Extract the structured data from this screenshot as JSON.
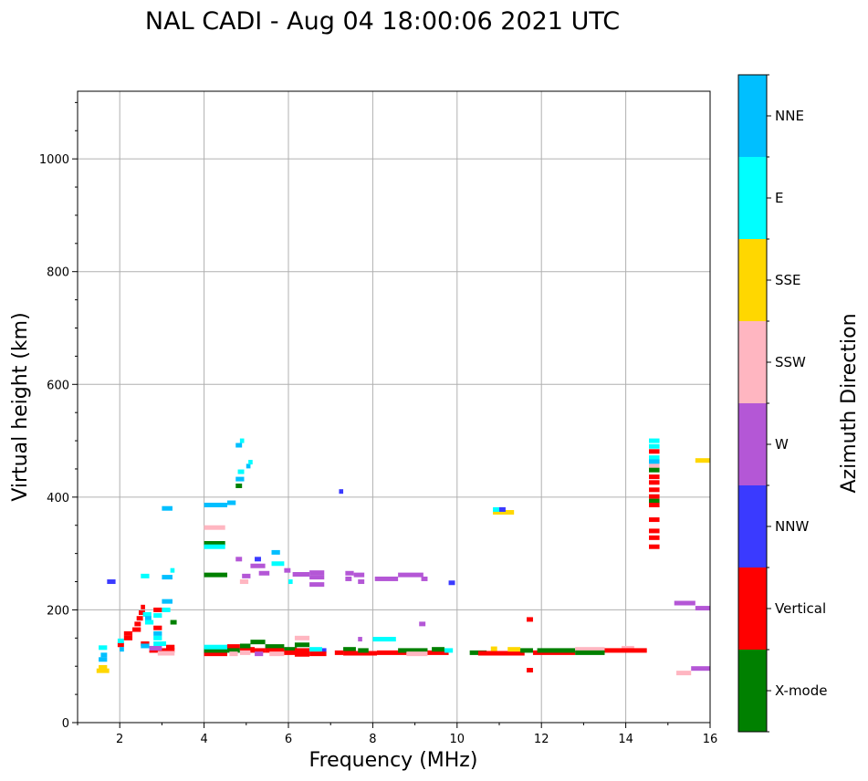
{
  "chart_data": {
    "type": "scatter",
    "title": "NAL CADI - Aug 04 18:00:06 2021 UTC",
    "xlabel": "Frequency (MHz)",
    "ylabel": "Virtual height (km)",
    "xlim": [
      1,
      16
    ],
    "ylim": [
      0,
      1120
    ],
    "xticks": [
      2,
      4,
      6,
      8,
      10,
      12,
      14,
      16
    ],
    "yticks": [
      0,
      200,
      400,
      600,
      800,
      1000
    ],
    "grid": true,
    "colorbar": {
      "label": "Azimuth Direction",
      "categories": [
        {
          "name": "X-mode",
          "color": "#008000"
        },
        {
          "name": "Vertical",
          "color": "#ff0000"
        },
        {
          "name": "NNW",
          "color": "#3a3aff"
        },
        {
          "name": "W",
          "color": "#b457d6"
        },
        {
          "name": "SSW",
          "color": "#ffb6c1"
        },
        {
          "name": "SSE",
          "color": "#ffd700"
        },
        {
          "name": "E",
          "color": "#00ffff"
        },
        {
          "name": "NNE",
          "color": "#00bfff"
        }
      ]
    },
    "segments": [
      {
        "c": "SSE",
        "x0": 1.45,
        "x1": 1.75,
        "y": 92
      },
      {
        "c": "SSE",
        "x0": 1.5,
        "x1": 1.7,
        "y": 98
      },
      {
        "c": "NNE",
        "x0": 1.5,
        "x1": 1.7,
        "y": 112
      },
      {
        "c": "NNE",
        "x0": 1.55,
        "x1": 1.7,
        "y": 120
      },
      {
        "c": "E",
        "x0": 1.5,
        "x1": 1.7,
        "y": 133
      },
      {
        "c": "NNW",
        "x0": 1.7,
        "x1": 1.9,
        "y": 250
      },
      {
        "c": "Vertical",
        "x0": 1.95,
        "x1": 2.1,
        "y": 138
      },
      {
        "c": "E",
        "x0": 1.95,
        "x1": 2.1,
        "y": 145
      },
      {
        "c": "NNE",
        "x0": 2.0,
        "x1": 2.1,
        "y": 130
      },
      {
        "c": "Vertical",
        "x0": 2.1,
        "x1": 2.3,
        "y": 150
      },
      {
        "c": "Vertical",
        "x0": 2.1,
        "x1": 2.3,
        "y": 158
      },
      {
        "c": "Vertical",
        "x0": 2.3,
        "x1": 2.5,
        "y": 165
      },
      {
        "c": "Vertical",
        "x0": 2.35,
        "x1": 2.5,
        "y": 175
      },
      {
        "c": "Vertical",
        "x0": 2.4,
        "x1": 2.55,
        "y": 185
      },
      {
        "c": "Vertical",
        "x0": 2.45,
        "x1": 2.6,
        "y": 195
      },
      {
        "c": "Vertical",
        "x0": 2.5,
        "x1": 2.6,
        "y": 205
      },
      {
        "c": "E",
        "x0": 2.55,
        "x1": 2.75,
        "y": 192
      },
      {
        "c": "NNE",
        "x0": 2.6,
        "x1": 2.75,
        "y": 185
      },
      {
        "c": "E",
        "x0": 2.6,
        "x1": 2.8,
        "y": 178
      },
      {
        "c": "E",
        "x0": 2.8,
        "x1": 3.0,
        "y": 190
      },
      {
        "c": "Vertical",
        "x0": 2.8,
        "x1": 3.0,
        "y": 200
      },
      {
        "c": "Vertical",
        "x0": 2.8,
        "x1": 3.0,
        "y": 168
      },
      {
        "c": "NNE",
        "x0": 2.8,
        "x1": 3.0,
        "y": 158
      },
      {
        "c": "E",
        "x0": 2.8,
        "x1": 3.0,
        "y": 150
      },
      {
        "c": "E",
        "x0": 2.5,
        "x1": 2.7,
        "y": 260
      },
      {
        "c": "NNE",
        "x0": 3.0,
        "x1": 3.25,
        "y": 258
      },
      {
        "c": "E",
        "x0": 3.2,
        "x1": 3.3,
        "y": 270
      },
      {
        "c": "NNE",
        "x0": 3.0,
        "x1": 3.25,
        "y": 215
      },
      {
        "c": "E",
        "x0": 3.0,
        "x1": 3.2,
        "y": 200
      },
      {
        "c": "NNE",
        "x0": 3.0,
        "x1": 3.25,
        "y": 380
      },
      {
        "c": "Vertical",
        "x0": 2.5,
        "x1": 2.7,
        "y": 140
      },
      {
        "c": "NNE",
        "x0": 2.5,
        "x1": 2.7,
        "y": 136
      },
      {
        "c": "Vertical",
        "x0": 2.7,
        "x1": 3.3,
        "y": 128
      },
      {
        "c": "SSW",
        "x0": 2.9,
        "x1": 3.3,
        "y": 123
      },
      {
        "c": "W",
        "x0": 2.7,
        "x1": 3.0,
        "y": 132
      },
      {
        "c": "E",
        "x0": 2.8,
        "x1": 3.1,
        "y": 140
      },
      {
        "c": "Vertical",
        "x0": 3.1,
        "x1": 3.3,
        "y": 134
      },
      {
        "c": "X-mode",
        "x0": 3.2,
        "x1": 3.35,
        "y": 178
      },
      {
        "c": "NNE",
        "x0": 4.0,
        "x1": 4.55,
        "y": 386
      },
      {
        "c": "NNE",
        "x0": 4.55,
        "x1": 4.75,
        "y": 390
      },
      {
        "c": "SSW",
        "x0": 4.0,
        "x1": 4.5,
        "y": 346
      },
      {
        "c": "X-mode",
        "x0": 4.0,
        "x1": 4.5,
        "y": 318
      },
      {
        "c": "E",
        "x0": 4.0,
        "x1": 4.5,
        "y": 312
      },
      {
        "c": "X-mode",
        "x0": 4.0,
        "x1": 4.55,
        "y": 262
      },
      {
        "c": "X-mode",
        "x0": 4.75,
        "x1": 4.9,
        "y": 420
      },
      {
        "c": "NNE",
        "x0": 4.75,
        "x1": 4.95,
        "y": 432
      },
      {
        "c": "E",
        "x0": 4.8,
        "x1": 4.95,
        "y": 445
      },
      {
        "c": "NNE",
        "x0": 4.75,
        "x1": 4.9,
        "y": 492
      },
      {
        "c": "E",
        "x0": 4.85,
        "x1": 4.95,
        "y": 500
      },
      {
        "c": "NNE",
        "x0": 5.0,
        "x1": 5.1,
        "y": 455
      },
      {
        "c": "E",
        "x0": 5.05,
        "x1": 5.15,
        "y": 462
      },
      {
        "c": "W",
        "x0": 4.75,
        "x1": 4.9,
        "y": 290
      },
      {
        "c": "W",
        "x0": 4.9,
        "x1": 5.1,
        "y": 260
      },
      {
        "c": "NNW",
        "x0": 5.2,
        "x1": 5.35,
        "y": 290
      },
      {
        "c": "W",
        "x0": 5.1,
        "x1": 5.45,
        "y": 278
      },
      {
        "c": "W",
        "x0": 5.3,
        "x1": 5.55,
        "y": 265
      },
      {
        "c": "SSW",
        "x0": 4.85,
        "x1": 5.05,
        "y": 250
      },
      {
        "c": "NNE",
        "x0": 5.6,
        "x1": 5.8,
        "y": 302
      },
      {
        "c": "E",
        "x0": 5.6,
        "x1": 5.9,
        "y": 282
      },
      {
        "c": "W",
        "x0": 5.9,
        "x1": 6.05,
        "y": 270
      },
      {
        "c": "W",
        "x0": 6.1,
        "x1": 6.5,
        "y": 263
      },
      {
        "c": "W",
        "x0": 6.5,
        "x1": 6.85,
        "y": 266
      },
      {
        "c": "W",
        "x0": 6.5,
        "x1": 6.85,
        "y": 258
      },
      {
        "c": "W",
        "x0": 6.5,
        "x1": 6.85,
        "y": 245
      },
      {
        "c": "E",
        "x0": 6.0,
        "x1": 6.1,
        "y": 250
      },
      {
        "c": "NNW",
        "x0": 7.2,
        "x1": 7.3,
        "y": 410
      },
      {
        "c": "W",
        "x0": 7.35,
        "x1": 7.55,
        "y": 265
      },
      {
        "c": "W",
        "x0": 7.35,
        "x1": 7.5,
        "y": 255
      },
      {
        "c": "W",
        "x0": 7.55,
        "x1": 7.8,
        "y": 262
      },
      {
        "c": "W",
        "x0": 7.65,
        "x1": 7.8,
        "y": 250
      },
      {
        "c": "W",
        "x0": 8.05,
        "x1": 8.6,
        "y": 255
      },
      {
        "c": "W",
        "x0": 8.6,
        "x1": 9.2,
        "y": 262
      },
      {
        "c": "W",
        "x0": 9.15,
        "x1": 9.3,
        "y": 255
      },
      {
        "c": "NNW",
        "x0": 9.8,
        "x1": 9.95,
        "y": 248
      },
      {
        "c": "E",
        "x0": 8.0,
        "x1": 8.55,
        "y": 148
      },
      {
        "c": "W",
        "x0": 9.1,
        "x1": 9.25,
        "y": 175
      },
      {
        "c": "W",
        "x0": 7.65,
        "x1": 7.75,
        "y": 148
      },
      {
        "c": "SSE",
        "x0": 10.85,
        "x1": 11.35,
        "y": 373
      },
      {
        "c": "E",
        "x0": 10.85,
        "x1": 11.1,
        "y": 378
      },
      {
        "c": "NNW",
        "x0": 11.0,
        "x1": 11.15,
        "y": 378
      },
      {
        "c": "Vertical",
        "x0": 11.65,
        "x1": 11.8,
        "y": 183
      },
      {
        "c": "Vertical",
        "x0": 11.65,
        "x1": 11.8,
        "y": 93
      },
      {
        "c": "SSW",
        "x0": 15.2,
        "x1": 15.55,
        "y": 88
      },
      {
        "c": "W",
        "x0": 15.55,
        "x1": 16.0,
        "y": 96
      },
      {
        "c": "W",
        "x0": 15.15,
        "x1": 15.65,
        "y": 212
      },
      {
        "c": "W",
        "x0": 15.65,
        "x1": 16.0,
        "y": 203
      },
      {
        "c": "SSE",
        "x0": 15.65,
        "x1": 16.0,
        "y": 465
      },
      {
        "c": "NNW",
        "x0": 6.75,
        "x1": 6.9,
        "y": 128
      },
      {
        "c": "Vertical",
        "x0": 4.0,
        "x1": 4.55,
        "y": 122
      },
      {
        "c": "X-mode",
        "x0": 4.0,
        "x1": 4.55,
        "y": 128
      },
      {
        "c": "E",
        "x0": 4.0,
        "x1": 4.55,
        "y": 134
      },
      {
        "c": "Vertical",
        "x0": 4.55,
        "x1": 4.85,
        "y": 135
      },
      {
        "c": "X-mode",
        "x0": 4.55,
        "x1": 4.85,
        "y": 128
      },
      {
        "c": "SSW",
        "x0": 4.6,
        "x1": 4.8,
        "y": 122
      },
      {
        "c": "Vertical",
        "x0": 4.85,
        "x1": 5.2,
        "y": 130
      },
      {
        "c": "X-mode",
        "x0": 4.85,
        "x1": 5.1,
        "y": 136
      },
      {
        "c": "SSW",
        "x0": 4.85,
        "x1": 5.1,
        "y": 124
      },
      {
        "c": "X-mode",
        "x0": 5.1,
        "x1": 5.45,
        "y": 143
      },
      {
        "c": "Vertical",
        "x0": 5.1,
        "x1": 5.45,
        "y": 128
      },
      {
        "c": "W",
        "x0": 5.2,
        "x1": 5.4,
        "y": 122
      },
      {
        "c": "X-mode",
        "x0": 5.45,
        "x1": 5.9,
        "y": 135
      },
      {
        "c": "Vertical",
        "x0": 5.45,
        "x1": 5.9,
        "y": 128
      },
      {
        "c": "SSW",
        "x0": 5.55,
        "x1": 5.9,
        "y": 122
      },
      {
        "c": "X-mode",
        "x0": 5.9,
        "x1": 6.2,
        "y": 130
      },
      {
        "c": "Vertical",
        "x0": 5.9,
        "x1": 6.2,
        "y": 124
      },
      {
        "c": "X-mode",
        "x0": 6.15,
        "x1": 6.5,
        "y": 138
      },
      {
        "c": "Vertical",
        "x0": 6.15,
        "x1": 6.5,
        "y": 128
      },
      {
        "c": "Vertical",
        "x0": 6.15,
        "x1": 6.5,
        "y": 121
      },
      {
        "c": "SSW",
        "x0": 6.15,
        "x1": 6.5,
        "y": 150
      },
      {
        "c": "E",
        "x0": 6.5,
        "x1": 6.8,
        "y": 130
      },
      {
        "c": "Vertical",
        "x0": 6.5,
        "x1": 6.9,
        "y": 122
      },
      {
        "c": "Vertical",
        "x0": 7.1,
        "x1": 7.3,
        "y": 124
      },
      {
        "c": "X-mode",
        "x0": 7.3,
        "x1": 7.6,
        "y": 130
      },
      {
        "c": "Vertical",
        "x0": 7.3,
        "x1": 8.1,
        "y": 123
      },
      {
        "c": "X-mode",
        "x0": 7.65,
        "x1": 7.9,
        "y": 128
      },
      {
        "c": "Vertical",
        "x0": 8.1,
        "x1": 8.8,
        "y": 124
      },
      {
        "c": "X-mode",
        "x0": 8.6,
        "x1": 9.3,
        "y": 128
      },
      {
        "c": "SSW",
        "x0": 8.8,
        "x1": 9.3,
        "y": 122
      },
      {
        "c": "Vertical",
        "x0": 9.3,
        "x1": 9.8,
        "y": 124
      },
      {
        "c": "X-mode",
        "x0": 9.4,
        "x1": 9.7,
        "y": 130
      },
      {
        "c": "E",
        "x0": 9.7,
        "x1": 9.9,
        "y": 128
      },
      {
        "c": "X-mode",
        "x0": 10.3,
        "x1": 10.7,
        "y": 124
      },
      {
        "c": "Vertical",
        "x0": 10.5,
        "x1": 11.0,
        "y": 123
      },
      {
        "c": "SSE",
        "x0": 10.8,
        "x1": 10.95,
        "y": 131
      },
      {
        "c": "Vertical",
        "x0": 11.0,
        "x1": 11.6,
        "y": 123
      },
      {
        "c": "SSE",
        "x0": 11.2,
        "x1": 11.5,
        "y": 130
      },
      {
        "c": "X-mode",
        "x0": 11.5,
        "x1": 11.8,
        "y": 128
      },
      {
        "c": "Vertical",
        "x0": 11.8,
        "x1": 12.8,
        "y": 124
      },
      {
        "c": "X-mode",
        "x0": 11.9,
        "x1": 12.8,
        "y": 128
      },
      {
        "c": "SSW",
        "x0": 12.8,
        "x1": 13.5,
        "y": 130
      },
      {
        "c": "X-mode",
        "x0": 12.8,
        "x1": 13.5,
        "y": 124
      },
      {
        "c": "SSW",
        "x0": 13.9,
        "x1": 14.2,
        "y": 132
      },
      {
        "c": "Vertical",
        "x0": 13.5,
        "x1": 14.5,
        "y": 128
      },
      {
        "c": "E",
        "x0": 14.55,
        "x1": 14.8,
        "y": 500
      },
      {
        "c": "E",
        "x0": 14.55,
        "x1": 14.8,
        "y": 490
      },
      {
        "c": "Vertical",
        "x0": 14.55,
        "x1": 14.8,
        "y": 481
      },
      {
        "c": "E",
        "x0": 14.55,
        "x1": 14.8,
        "y": 470
      },
      {
        "c": "NNE",
        "x0": 14.55,
        "x1": 14.8,
        "y": 463
      },
      {
        "c": "SSW",
        "x0": 14.55,
        "x1": 14.8,
        "y": 455
      },
      {
        "c": "X-mode",
        "x0": 14.55,
        "x1": 14.8,
        "y": 448
      },
      {
        "c": "Vertical",
        "x0": 14.55,
        "x1": 14.8,
        "y": 436
      },
      {
        "c": "Vertical",
        "x0": 14.55,
        "x1": 14.8,
        "y": 426
      },
      {
        "c": "Vertical",
        "x0": 14.55,
        "x1": 14.8,
        "y": 413
      },
      {
        "c": "Vertical",
        "x0": 14.55,
        "x1": 14.8,
        "y": 401
      },
      {
        "c": "X-mode",
        "x0": 14.55,
        "x1": 14.8,
        "y": 393
      },
      {
        "c": "Vertical",
        "x0": 14.55,
        "x1": 14.8,
        "y": 386
      },
      {
        "c": "Vertical",
        "x0": 14.55,
        "x1": 14.8,
        "y": 360
      },
      {
        "c": "Vertical",
        "x0": 14.55,
        "x1": 14.8,
        "y": 340
      },
      {
        "c": "Vertical",
        "x0": 14.55,
        "x1": 14.8,
        "y": 328
      },
      {
        "c": "Vertical",
        "x0": 14.55,
        "x1": 14.8,
        "y": 312
      }
    ]
  }
}
